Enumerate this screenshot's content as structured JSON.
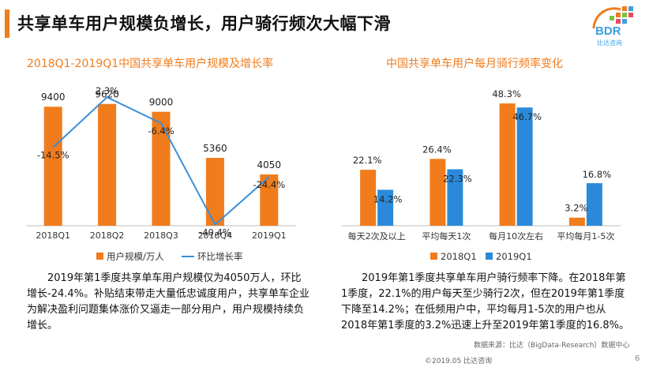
{
  "header": {
    "title": "共享单车用户规模负增长，用户骑行频次大幅下滑"
  },
  "logo": {
    "text": "BDR",
    "subtext": "比达咨询",
    "colors": [
      "#f07c1c",
      "#3aa0e0",
      "#7dc242",
      "#e84a5f"
    ]
  },
  "colors": {
    "orange": "#f07c1c",
    "blue": "#2a8ad9",
    "line": "#3a8fd9"
  },
  "chart_data": [
    {
      "type": "bar",
      "title": "2018Q1-2019Q1中国共享单车用户规模及增长率",
      "categories": [
        "2018Q1",
        "2018Q2",
        "2018Q3",
        "2018Q4",
        "2019Q1"
      ],
      "series": [
        {
          "name": "用户规模/万人",
          "values": [
            9400,
            9620,
            9000,
            5360,
            4050
          ],
          "labels": [
            "9400",
            "9620",
            "9000",
            "5360",
            "4050"
          ]
        },
        {
          "name": "环比增长率",
          "type": "line",
          "values": [
            -14.5,
            2.3,
            -6.4,
            -40.4,
            -24.4
          ],
          "labels": [
            "-14.5%",
            "2.3%",
            "-6.4%",
            "-40.4%",
            "-24.4%"
          ]
        }
      ],
      "legend": "bottom",
      "grid": false
    },
    {
      "type": "bar",
      "title": "中国共享单车用户每月骑行频率变化",
      "categories": [
        "每天2次及以上",
        "平均每天1次",
        "每月10次左右",
        "平均每月1-5次"
      ],
      "series": [
        {
          "name": "2018Q1",
          "values": [
            22.1,
            26.4,
            48.3,
            3.2
          ],
          "labels": [
            "22.1%",
            "26.4%",
            "48.3%",
            "3.2%"
          ]
        },
        {
          "name": "2019Q1",
          "values": [
            14.2,
            22.3,
            46.7,
            16.8
          ],
          "labels": [
            "14.2%",
            "22.3%",
            "46.7%",
            "16.8%"
          ]
        }
      ],
      "legend": "bottom",
      "grid": false
    }
  ],
  "text": {
    "desc1": "2019年第1季度共享单车用户规模仅为4050万人，环比增长-24.4%。补贴结束带走大量低忠诚度用户，共享单车企业为解决盈利问题集体涨价又逼走一部分用户，用户规模持续负增长。",
    "desc2": "2019年第1季度共享单车用户骑行频率下降。在2018年第1季度，22.1%的用户每天至少骑行2次，但在2019年第1季度下降至14.2%；在低频用户中，平均每月1-5次的用户也从2018年第1季度的3.2%迅速上升至2019年第1季度的16.8%。",
    "source": "数据来源：比达（BigData-Research）数据中心",
    "footer": "©2019.05  比达咨询",
    "page": "6"
  }
}
